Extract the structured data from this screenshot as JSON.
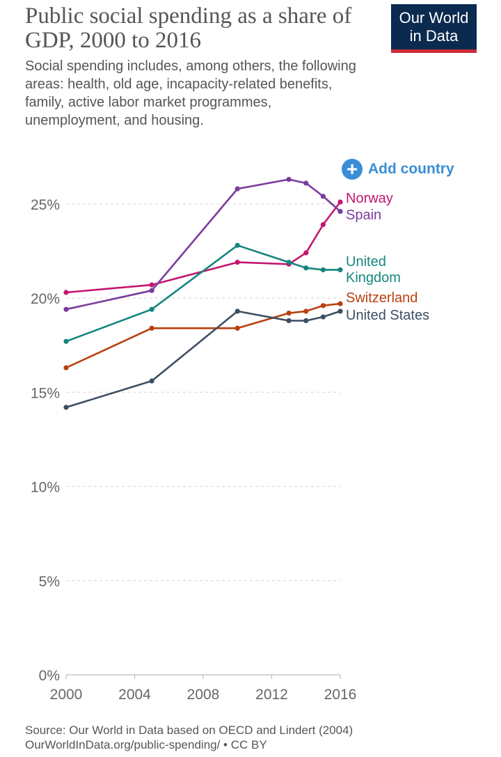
{
  "header": {
    "title": "Public social spending as a share of GDP, 2000 to 2016",
    "subtitle": "Social spending includes, among others, the following areas: health, old age, incapacity-related benefits, family, active labor market programmes, unemployment, and housing.",
    "logo_line1": "Our World",
    "logo_line2": "in Data"
  },
  "controls": {
    "add_country_label": "Add country",
    "add_icon": "plus-circle-icon"
  },
  "footer": {
    "source": "Source: Our World in Data based on OECD and Lindert (2004)",
    "url_line": "OurWorldInData.org/public-spending/ • CC BY"
  },
  "colors": {
    "norway": "#c4166f",
    "spain": "#7a3b9c",
    "united_kingdom": "#14857e",
    "switzerland": "#b8410e",
    "united_states": "#3d4e63",
    "accent": "#3a8ed6",
    "logo_bg": "#0b2a4f",
    "logo_bar": "#ce2d38"
  },
  "chart_data": {
    "type": "line",
    "title": "Public social spending as a share of GDP, 2000 to 2016",
    "xlim": [
      2000,
      2016
    ],
    "ylim": [
      0,
      25
    ],
    "x_ticks": [
      "2000",
      "2004",
      "2008",
      "2012",
      "2016"
    ],
    "y_ticks": [
      "0%",
      "5%",
      "10%",
      "15%",
      "20%",
      "25%"
    ],
    "grid": "horizontal-dashed",
    "legend": "inline-right",
    "series": [
      {
        "name": "Norway",
        "label_lines": [
          "Norway"
        ],
        "color": "#c4166f",
        "points": [
          [
            2000,
            20.3
          ],
          [
            2005,
            20.7
          ],
          [
            2010,
            21.9
          ],
          [
            2013,
            21.8
          ],
          [
            2014,
            22.4
          ],
          [
            2015,
            23.9
          ],
          [
            2016,
            25.1
          ]
        ]
      },
      {
        "name": "Spain",
        "label_lines": [
          "Spain"
        ],
        "color": "#7a3b9c",
        "points": [
          [
            2000,
            19.4
          ],
          [
            2005,
            20.4
          ],
          [
            2010,
            25.8
          ],
          [
            2013,
            26.3
          ],
          [
            2014,
            26.1
          ],
          [
            2015,
            25.4
          ],
          [
            2016,
            24.6
          ]
        ]
      },
      {
        "name": "United Kingdom",
        "label_lines": [
          "United",
          "Kingdom"
        ],
        "color": "#14857e",
        "points": [
          [
            2000,
            17.7
          ],
          [
            2005,
            19.4
          ],
          [
            2010,
            22.8
          ],
          [
            2013,
            21.9
          ],
          [
            2014,
            21.6
          ],
          [
            2015,
            21.5
          ],
          [
            2016,
            21.5
          ]
        ]
      },
      {
        "name": "Switzerland",
        "label_lines": [
          "Switzerland"
        ],
        "color": "#b8410e",
        "points": [
          [
            2000,
            16.3
          ],
          [
            2005,
            18.4
          ],
          [
            2010,
            18.4
          ],
          [
            2013,
            19.2
          ],
          [
            2014,
            19.3
          ],
          [
            2015,
            19.6
          ],
          [
            2016,
            19.7
          ]
        ]
      },
      {
        "name": "United States",
        "label_lines": [
          "United States"
        ],
        "color": "#3d4e63",
        "points": [
          [
            2000,
            14.2
          ],
          [
            2005,
            15.6
          ],
          [
            2010,
            19.3
          ],
          [
            2013,
            18.8
          ],
          [
            2014,
            18.8
          ],
          [
            2015,
            19.0
          ],
          [
            2016,
            19.3
          ]
        ]
      }
    ]
  }
}
